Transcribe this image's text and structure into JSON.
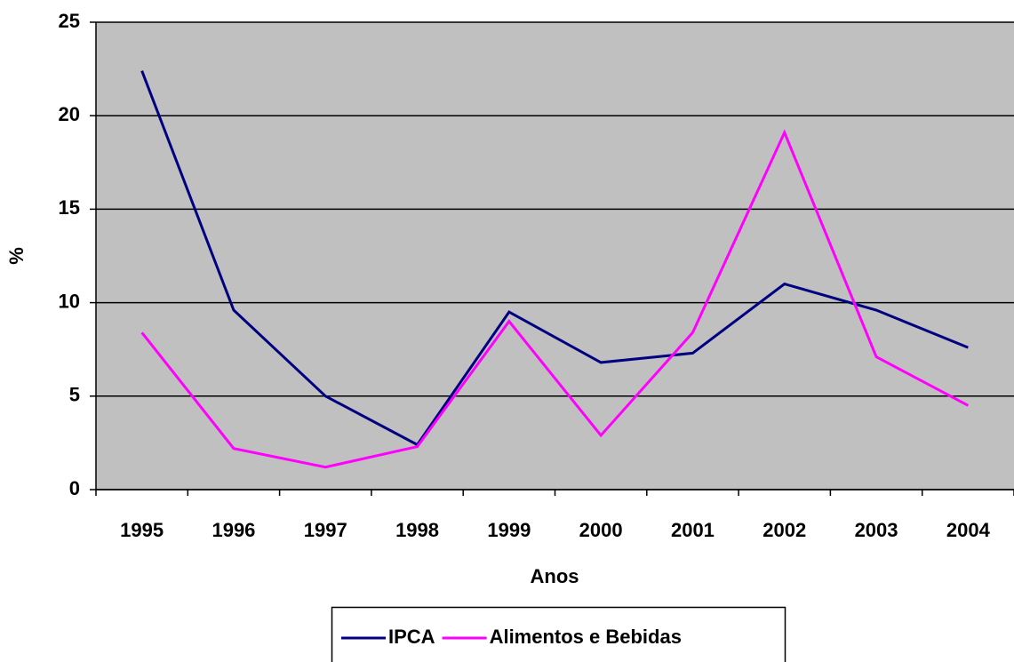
{
  "chart_data": {
    "type": "line",
    "xlabel": "Anos",
    "ylabel": "%",
    "categories": [
      "1995",
      "1996",
      "1997",
      "1998",
      "1999",
      "2000",
      "2001",
      "2002",
      "2003",
      "2004"
    ],
    "series": [
      {
        "name": "IPCA",
        "color": "#000080",
        "values": [
          22.4,
          9.6,
          5.0,
          2.4,
          9.5,
          6.8,
          7.3,
          11.0,
          9.6,
          7.6
        ]
      },
      {
        "name": "Alimentos e Bebidas",
        "color": "#ff00ff",
        "values": [
          8.4,
          2.2,
          1.2,
          2.3,
          9.0,
          2.9,
          8.4,
          19.1,
          7.1,
          4.5
        ]
      }
    ],
    "ylim": [
      0,
      25
    ],
    "yticks": [
      0,
      5,
      10,
      15,
      20,
      25
    ],
    "grid": true,
    "legend": "bottom"
  }
}
